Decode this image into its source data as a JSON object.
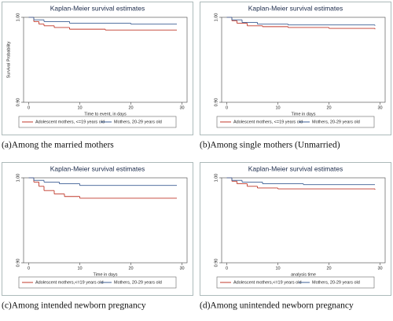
{
  "chart_data": [
    {
      "type": "step",
      "title": "Kaplan-Meier survival estimates",
      "ylabel": "Survival Probability",
      "xlabel": "Time to event, in days",
      "caption": "(a)Among the married mothers",
      "xlim": [
        -1,
        31
      ],
      "xticks": [
        0,
        10,
        20,
        30
      ],
      "ylim": [
        0.9,
        1.0
      ],
      "yticks": [
        {
          "value": 0.9,
          "label": "0.90"
        },
        {
          "value": 1.0,
          "label": "1.00"
        }
      ],
      "series": [
        {
          "name": "Adolescent mothers, <=19 years old",
          "color": "#c0392b",
          "x": [
            0,
            1,
            2,
            3,
            5,
            8,
            15,
            29
          ],
          "values": [
            1,
            0.995,
            0.992,
            0.99,
            0.988,
            0.986,
            0.985,
            0.985
          ]
        },
        {
          "name": "Mothers, 20-29 years old",
          "color": "#3d5f94",
          "x": [
            0,
            1,
            3,
            8,
            20,
            29
          ],
          "values": [
            1,
            0.997,
            0.995,
            0.993,
            0.992,
            0.992
          ]
        }
      ]
    },
    {
      "type": "step",
      "title": "Kaplan-Meier survival estimates",
      "xlabel": "Time in days",
      "caption": "(b)Among single mothers (Unmarried)",
      "xlim": [
        -1,
        31
      ],
      "xticks": [
        0,
        10,
        20,
        30
      ],
      "ylim": [
        0.9,
        1.0
      ],
      "yticks": [
        {
          "value": 0.9,
          "label": "0.90"
        },
        {
          "value": 1.0,
          "label": "1.00"
        }
      ],
      "series": [
        {
          "name": "Adolescent mothers, <=19 years old",
          "color": "#c0392b",
          "x": [
            0,
            1,
            2,
            4,
            7,
            12,
            20,
            29
          ],
          "values": [
            1,
            0.996,
            0.993,
            0.99,
            0.989,
            0.988,
            0.987,
            0.986
          ]
        },
        {
          "name": "Mothers, 20-29 years old",
          "color": "#3d5f94",
          "x": [
            0,
            1,
            3,
            6,
            12,
            29
          ],
          "values": [
            1,
            0.997,
            0.994,
            0.992,
            0.991,
            0.99
          ]
        }
      ]
    },
    {
      "type": "step",
      "title": "Kaplan-Meier survival estimates",
      "xlabel": "Time in days",
      "caption": "(c)Among intended newborn pregnancy",
      "xlim": [
        -1,
        31
      ],
      "xticks": [
        0,
        10,
        20,
        30
      ],
      "ylim": [
        0.9,
        1.0
      ],
      "yticks": [
        {
          "value": 0.9,
          "label": "0.90"
        },
        {
          "value": 1.0,
          "label": "1.00"
        }
      ],
      "series": [
        {
          "name": "Adolescent mothers,<=19 years old",
          "color": "#c0392b",
          "x": [
            0,
            1,
            2,
            3,
            5,
            7,
            10,
            29
          ],
          "values": [
            1,
            0.995,
            0.99,
            0.985,
            0.981,
            0.978,
            0.976,
            0.976
          ]
        },
        {
          "name": "Mothers, 20-29 years old",
          "color": "#3d5f94",
          "x": [
            0,
            1,
            3,
            6,
            10,
            29
          ],
          "values": [
            1,
            0.997,
            0.995,
            0.993,
            0.991,
            0.991
          ]
        }
      ]
    },
    {
      "type": "step",
      "title": "Kaplan-Meier survival estimates",
      "xlabel": "analysis time",
      "caption": "(d)Among unintended newborn pregnancy",
      "xlim": [
        -1,
        31
      ],
      "xticks": [
        0,
        10,
        20,
        30
      ],
      "ylim": [
        0.9,
        1.0
      ],
      "yticks": [
        {
          "value": 0.9,
          "label": "0.90"
        },
        {
          "value": 1.0,
          "label": "1.00"
        }
      ],
      "series": [
        {
          "name": "Adolescent mothers,<=19 years old",
          "color": "#c0392b",
          "x": [
            0,
            1,
            2,
            4,
            6,
            10,
            29
          ],
          "values": [
            1,
            0.996,
            0.993,
            0.99,
            0.988,
            0.987,
            0.986
          ]
        },
        {
          "name": "Mothers, 20-29 years old",
          "color": "#3d5f94",
          "x": [
            0,
            1,
            3,
            7,
            15,
            29
          ],
          "values": [
            1,
            0.997,
            0.995,
            0.993,
            0.992,
            0.992
          ]
        }
      ]
    }
  ]
}
